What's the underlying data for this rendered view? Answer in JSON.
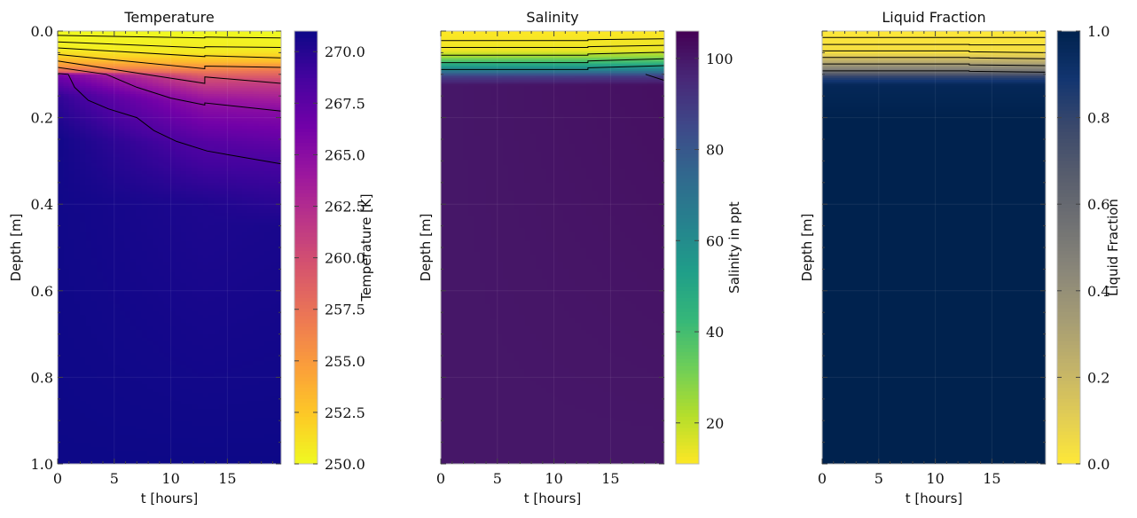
{
  "chart_data": [
    {
      "type": "heatmap",
      "title": "Temperature",
      "xlabel": "t [hours]",
      "ylabel": "Depth [m]",
      "xlim": [
        0,
        19.75
      ],
      "ylim": [
        1.0,
        0.0
      ],
      "xticks": [
        "0",
        "5",
        "10",
        "15"
      ],
      "yticks": [
        "0.0",
        "0.2",
        "0.4",
        "0.6",
        "0.8",
        "1.0"
      ],
      "show_yticklabels": true,
      "colormap": "plasma_r",
      "colorbar": {
        "label": "Temperature [K]",
        "range": [
          250,
          271
        ],
        "ticks": [
          "250.0",
          "252.5",
          "255.0",
          "257.5",
          "260.0",
          "262.5",
          "265.0",
          "267.5",
          "270.0"
        ]
      },
      "profiles": [
        {
          "t": 0,
          "depth_value": [
            [
              0,
              250
            ],
            [
              0.04,
              250.5
            ],
            [
              0.06,
              252
            ],
            [
              0.08,
              255
            ],
            [
              0.095,
              259
            ],
            [
              0.1,
              266
            ],
            [
              0.15,
              269.5
            ],
            [
              0.25,
              270.8
            ],
            [
              1,
              271
            ]
          ]
        },
        {
          "t": 13,
          "depth_value": [
            [
              0,
              250
            ],
            [
              0.05,
              250.8
            ],
            [
              0.07,
              253
            ],
            [
              0.09,
              256.5
            ],
            [
              0.11,
              260
            ],
            [
              0.16,
              264.5
            ],
            [
              0.26,
              268
            ],
            [
              0.4,
              270.3
            ],
            [
              1,
              271
            ]
          ]
        },
        {
          "t": 19.75,
          "depth_value": [
            [
              0,
              250
            ],
            [
              0.04,
              250.5
            ],
            [
              0.07,
              253
            ],
            [
              0.09,
              257
            ],
            [
              0.12,
              261
            ],
            [
              0.18,
              265
            ],
            [
              0.3,
              268.5
            ],
            [
              0.45,
              270.5
            ],
            [
              1,
              271
            ]
          ]
        }
      ],
      "contours": [
        [
          [
            0,
            0.01
          ],
          [
            13,
            0.016
          ],
          [
            13,
            0.014
          ],
          [
            19.75,
            0.016
          ]
        ],
        [
          [
            0,
            0.025
          ],
          [
            13,
            0.039
          ],
          [
            13,
            0.036
          ],
          [
            19.75,
            0.038
          ]
        ],
        [
          [
            0,
            0.039
          ],
          [
            13,
            0.059
          ],
          [
            13,
            0.057
          ],
          [
            19.75,
            0.062
          ]
        ],
        [
          [
            0,
            0.054
          ],
          [
            13,
            0.087
          ],
          [
            13,
            0.081
          ],
          [
            19.75,
            0.084
          ]
        ],
        [
          [
            0,
            0.069
          ],
          [
            13,
            0.121
          ],
          [
            13,
            0.106
          ],
          [
            19.75,
            0.121
          ]
        ],
        [
          [
            0,
            0.084
          ],
          [
            4.3,
            0.1
          ],
          [
            7,
            0.13
          ],
          [
            10,
            0.155
          ],
          [
            13,
            0.171
          ],
          [
            13,
            0.166
          ],
          [
            19.75,
            0.185
          ]
        ],
        [
          [
            0,
            0.098
          ],
          [
            0.94,
            0.1
          ],
          [
            1.5,
            0.13
          ],
          [
            2.7,
            0.16
          ],
          [
            4.5,
            0.18
          ],
          [
            7,
            0.2
          ],
          [
            8.5,
            0.23
          ],
          [
            10.5,
            0.255
          ],
          [
            13.2,
            0.277
          ],
          [
            16,
            0.29
          ],
          [
            19.75,
            0.307
          ]
        ]
      ]
    },
    {
      "type": "heatmap",
      "title": "Salinity",
      "xlabel": "t [hours]",
      "ylabel": "Depth [m]",
      "xlim": [
        0,
        19.75
      ],
      "ylim": [
        1.0,
        0.0
      ],
      "xticks": [
        "0",
        "5",
        "10",
        "15"
      ],
      "yticks": [],
      "show_yticklabels": false,
      "colormap": "viridis_r",
      "colorbar": {
        "label": "Salinity in ppt",
        "range": [
          11,
          106
        ],
        "ticks": [
          "20",
          "40",
          "60",
          "80",
          "100"
        ]
      },
      "profiles": [
        {
          "t": 0,
          "depth_value": [
            [
              0,
              11
            ],
            [
              0.045,
              13
            ],
            [
              0.06,
              25
            ],
            [
              0.075,
              45
            ],
            [
              0.09,
              65
            ],
            [
              0.105,
              88
            ],
            [
              0.125,
              100
            ],
            [
              1,
              100
            ]
          ]
        },
        {
          "t": 19.75,
          "depth_value": [
            [
              0,
              11
            ],
            [
              0.045,
              14
            ],
            [
              0.06,
              28
            ],
            [
              0.075,
              45
            ],
            [
              0.09,
              65
            ],
            [
              0.105,
              90
            ],
            [
              0.125,
              102
            ],
            [
              1,
              100
            ]
          ]
        }
      ],
      "contours": [
        [
          [
            0,
            0.022
          ],
          [
            13,
            0.022
          ],
          [
            13,
            0.02
          ],
          [
            19.75,
            0.018
          ]
        ],
        [
          [
            0,
            0.038
          ],
          [
            13,
            0.038
          ],
          [
            13,
            0.036
          ],
          [
            19.75,
            0.033
          ]
        ],
        [
          [
            0,
            0.056
          ],
          [
            13,
            0.056
          ],
          [
            13,
            0.053
          ],
          [
            19.75,
            0.049
          ]
        ],
        [
          [
            0,
            0.073
          ],
          [
            13,
            0.073
          ],
          [
            13,
            0.069
          ],
          [
            19.75,
            0.064
          ]
        ],
        [
          [
            0,
            0.089
          ],
          [
            13,
            0.089
          ],
          [
            13,
            0.085
          ],
          [
            19.75,
            0.08
          ]
        ],
        [
          [
            18.1,
            0.1
          ],
          [
            19.75,
            0.114
          ]
        ]
      ]
    },
    {
      "type": "heatmap",
      "title": "Liquid Fraction",
      "xlabel": "t [hours]",
      "ylabel": "Depth [m]",
      "xlim": [
        0,
        19.75
      ],
      "ylim": [
        1.0,
        0.0
      ],
      "xticks": [
        "0",
        "5",
        "10",
        "15"
      ],
      "yticks": [
        "0.0",
        "0.2",
        "0.4",
        "0.6",
        "0.8",
        "1.0"
      ],
      "show_yticklabels": false,
      "colormap": "cividis_r",
      "colorbar": {
        "label": "Liquid Fraction",
        "range": [
          0,
          1
        ],
        "ticks": [
          "0.0",
          "0.2",
          "0.4",
          "0.6",
          "0.8",
          "1.0"
        ]
      },
      "profiles": [
        {
          "t": 0,
          "depth_value": [
            [
              0,
              0
            ],
            [
              0.05,
              0.04
            ],
            [
              0.07,
              0.25
            ],
            [
              0.09,
              0.5
            ],
            [
              0.105,
              0.8
            ],
            [
              0.125,
              0.97
            ],
            [
              0.2,
              1
            ],
            [
              1,
              1
            ]
          ]
        },
        {
          "t": 19.75,
          "depth_value": [
            [
              0,
              0
            ],
            [
              0.05,
              0.04
            ],
            [
              0.07,
              0.25
            ],
            [
              0.09,
              0.5
            ],
            [
              0.105,
              0.8
            ],
            [
              0.125,
              0.97
            ],
            [
              0.2,
              1
            ],
            [
              1,
              1
            ]
          ]
        }
      ],
      "contours": [
        [
          [
            0,
            0.015
          ],
          [
            13,
            0.015
          ],
          [
            13,
            0.015
          ],
          [
            19.75,
            0.015
          ]
        ],
        [
          [
            0,
            0.031
          ],
          [
            13,
            0.031
          ],
          [
            13,
            0.032
          ],
          [
            19.75,
            0.032
          ]
        ],
        [
          [
            0,
            0.046
          ],
          [
            13,
            0.046
          ],
          [
            13,
            0.048
          ],
          [
            19.75,
            0.05
          ]
        ],
        [
          [
            0,
            0.061
          ],
          [
            13,
            0.061
          ],
          [
            13,
            0.062
          ],
          [
            19.75,
            0.064
          ]
        ],
        [
          [
            0,
            0.076
          ],
          [
            13,
            0.076
          ],
          [
            13,
            0.078
          ],
          [
            19.75,
            0.08
          ]
        ],
        [
          [
            0,
            0.092
          ],
          [
            13,
            0.092
          ],
          [
            13,
            0.093
          ],
          [
            19.75,
            0.095
          ]
        ]
      ]
    }
  ]
}
